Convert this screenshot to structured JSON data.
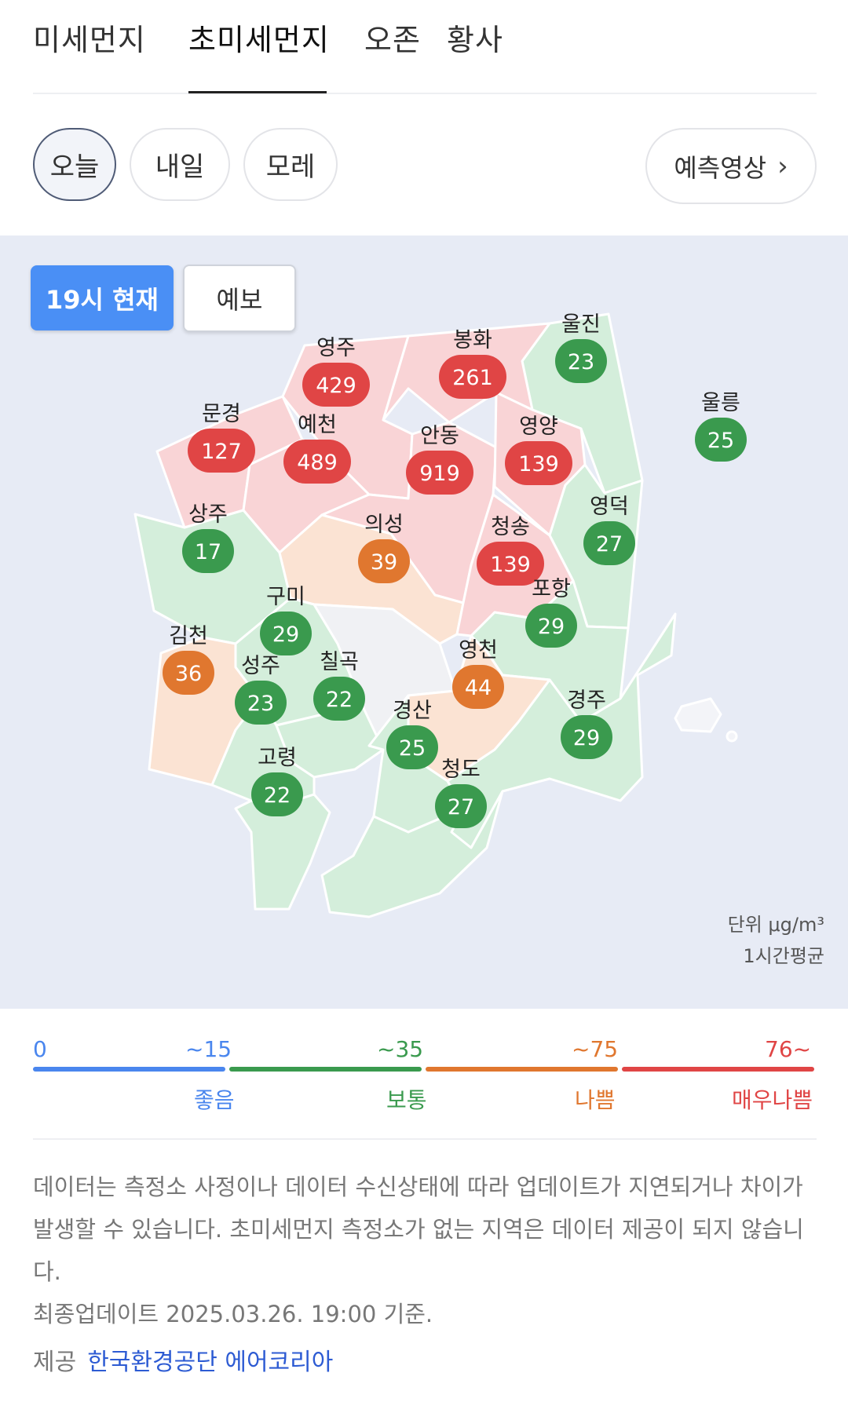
{
  "tabs": [
    "미세먼지",
    "초미세먼지",
    "오존",
    "황사"
  ],
  "day_pills": [
    "오늘",
    "내일",
    "모레"
  ],
  "forecast_video": "예측영상",
  "map": {
    "now_button": "19시 현재",
    "forecast_button": "예보",
    "regions": [
      {
        "name": "영주",
        "value": "429",
        "level": "very-bad"
      },
      {
        "name": "봉화",
        "value": "261",
        "level": "very-bad"
      },
      {
        "name": "울진",
        "value": "23",
        "level": "normal"
      },
      {
        "name": "울릉",
        "value": "25",
        "level": "normal"
      },
      {
        "name": "문경",
        "value": "127",
        "level": "very-bad"
      },
      {
        "name": "예천",
        "value": "489",
        "level": "very-bad"
      },
      {
        "name": "안동",
        "value": "919",
        "level": "very-bad"
      },
      {
        "name": "영양",
        "value": "139",
        "level": "very-bad"
      },
      {
        "name": "영덕",
        "value": "27",
        "level": "normal"
      },
      {
        "name": "상주",
        "value": "17",
        "level": "normal"
      },
      {
        "name": "의성",
        "value": "39",
        "level": "bad"
      },
      {
        "name": "청송",
        "value": "139",
        "level": "very-bad"
      },
      {
        "name": "구미",
        "value": "29",
        "level": "normal"
      },
      {
        "name": "포항",
        "value": "29",
        "level": "normal"
      },
      {
        "name": "김천",
        "value": "36",
        "level": "bad"
      },
      {
        "name": "성주",
        "value": "23",
        "level": "normal"
      },
      {
        "name": "칠곡",
        "value": "22",
        "level": "normal"
      },
      {
        "name": "영천",
        "value": "44",
        "level": "bad"
      },
      {
        "name": "경산",
        "value": "25",
        "level": "normal"
      },
      {
        "name": "경주",
        "value": "29",
        "level": "normal"
      },
      {
        "name": "고령",
        "value": "22",
        "level": "normal"
      },
      {
        "name": "청도",
        "value": "27",
        "level": "normal"
      }
    ],
    "unit_line1": "단위 μg/m³",
    "unit_line2": "1시간평균"
  },
  "legend": {
    "thresholds": [
      "0",
      "~15",
      "~35",
      "~75",
      "76~"
    ],
    "labels": [
      "좋음",
      "보통",
      "나쁨",
      "매우나쁨"
    ],
    "colors": {
      "good": "#4a86ee",
      "normal": "#3a9a4e",
      "bad": "#e0772f",
      "very_bad": "#e04545"
    }
  },
  "notice": {
    "text": "데이터는 측정소 사정이나 데이터 수신상태에 따라 업데이트가 지연되거나 차이가 발생할 수 있습니다. 초미세먼지 측정소가 없는 지역은 데이터 제공이 되지 않습니다.",
    "updated": "최종업데이트 2025.03.26. 19:00 기준."
  },
  "provider": {
    "label": "제공",
    "link": "한국환경공단 에어코리아"
  }
}
